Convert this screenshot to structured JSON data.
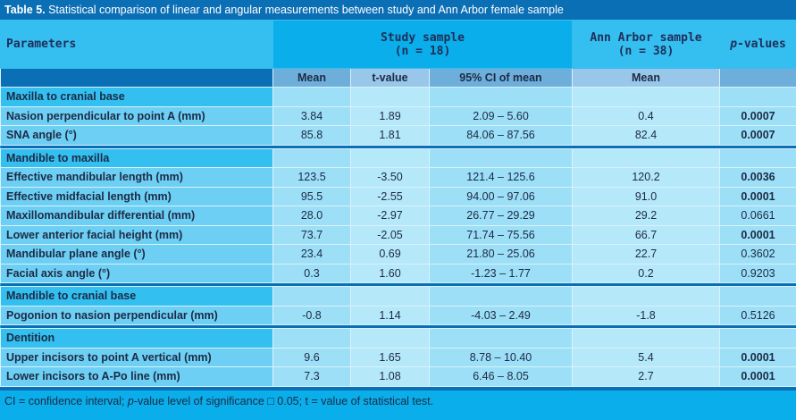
{
  "title": {
    "label": "Table 5.",
    "text": " Statistical comparison of linear and angular measurements between study and Ann Arbor female sample"
  },
  "header": {
    "parameters": "Parameters",
    "study": "Study sample",
    "study_n": "(n = 18)",
    "annarbor": "Ann Arbor sample",
    "annarbor_n": "(n = 38)",
    "p_italic": "p",
    "p_rest": "-values"
  },
  "subheader": [
    "Mean",
    "t-value",
    "95% CI of mean",
    "Mean"
  ],
  "sections": [
    {
      "name": "Maxilla to cranial base",
      "rows": [
        [
          "Nasion perpendicular to point A (mm)",
          "3.84",
          "1.89",
          "2.09 – 5.60",
          "0.4",
          "0.0007",
          true
        ],
        [
          "SNA angle (°)",
          "85.8",
          "1.81",
          "84.06 – 87.56",
          "82.4",
          "0.0007",
          true
        ]
      ]
    },
    {
      "name": "Mandible to maxilla",
      "rows": [
        [
          "Effective mandibular length (mm)",
          "123.5",
          "-3.50",
          "121.4 – 125.6",
          "120.2",
          "0.0036",
          true
        ],
        [
          "Effective midfacial length (mm)",
          "95.5",
          "-2.55",
          "94.00 – 97.06",
          "91.0",
          "0.0001",
          true
        ],
        [
          "Maxillomandibular differential (mm)",
          "28.0",
          "-2.97",
          "26.77 – 29.29",
          "29.2",
          "0.0661",
          false
        ],
        [
          "Lower anterior facial height (mm)",
          "73.7",
          "-2.05",
          "71.74 – 75.56",
          "66.7",
          "0.0001",
          true
        ],
        [
          "Mandibular plane angle (°)",
          "23.4",
          "0.69",
          "21.80 – 25.06",
          "22.7",
          "0.3602",
          false
        ],
        [
          "Facial axis angle (°)",
          "0.3",
          "1.60",
          "-1.23 – 1.77",
          "0.2",
          "0.9203",
          false
        ]
      ]
    },
    {
      "name": "Mandible to cranial base",
      "rows": [
        [
          "Pogonion to nasion perpendicular (mm)",
          "-0.8",
          "1.14",
          "-4.03 – 2.49",
          "-1.8",
          "0.5126",
          false
        ]
      ]
    },
    {
      "name": "Dentition",
      "rows": [
        [
          "Upper incisors to point A vertical (mm)",
          "9.6",
          "1.65",
          "8.78 – 10.40",
          "5.4",
          "0.0001",
          true
        ],
        [
          "Lower incisors to A-Po line (mm)",
          "7.3",
          "1.08",
          "6.46 – 8.05",
          "2.7",
          "0.0001",
          true
        ]
      ]
    }
  ],
  "footnote": {
    "a": "CI = confidence interval; ",
    "p": "p",
    "b": "-value level of significance □ 0.05; t = value of statistical test."
  }
}
